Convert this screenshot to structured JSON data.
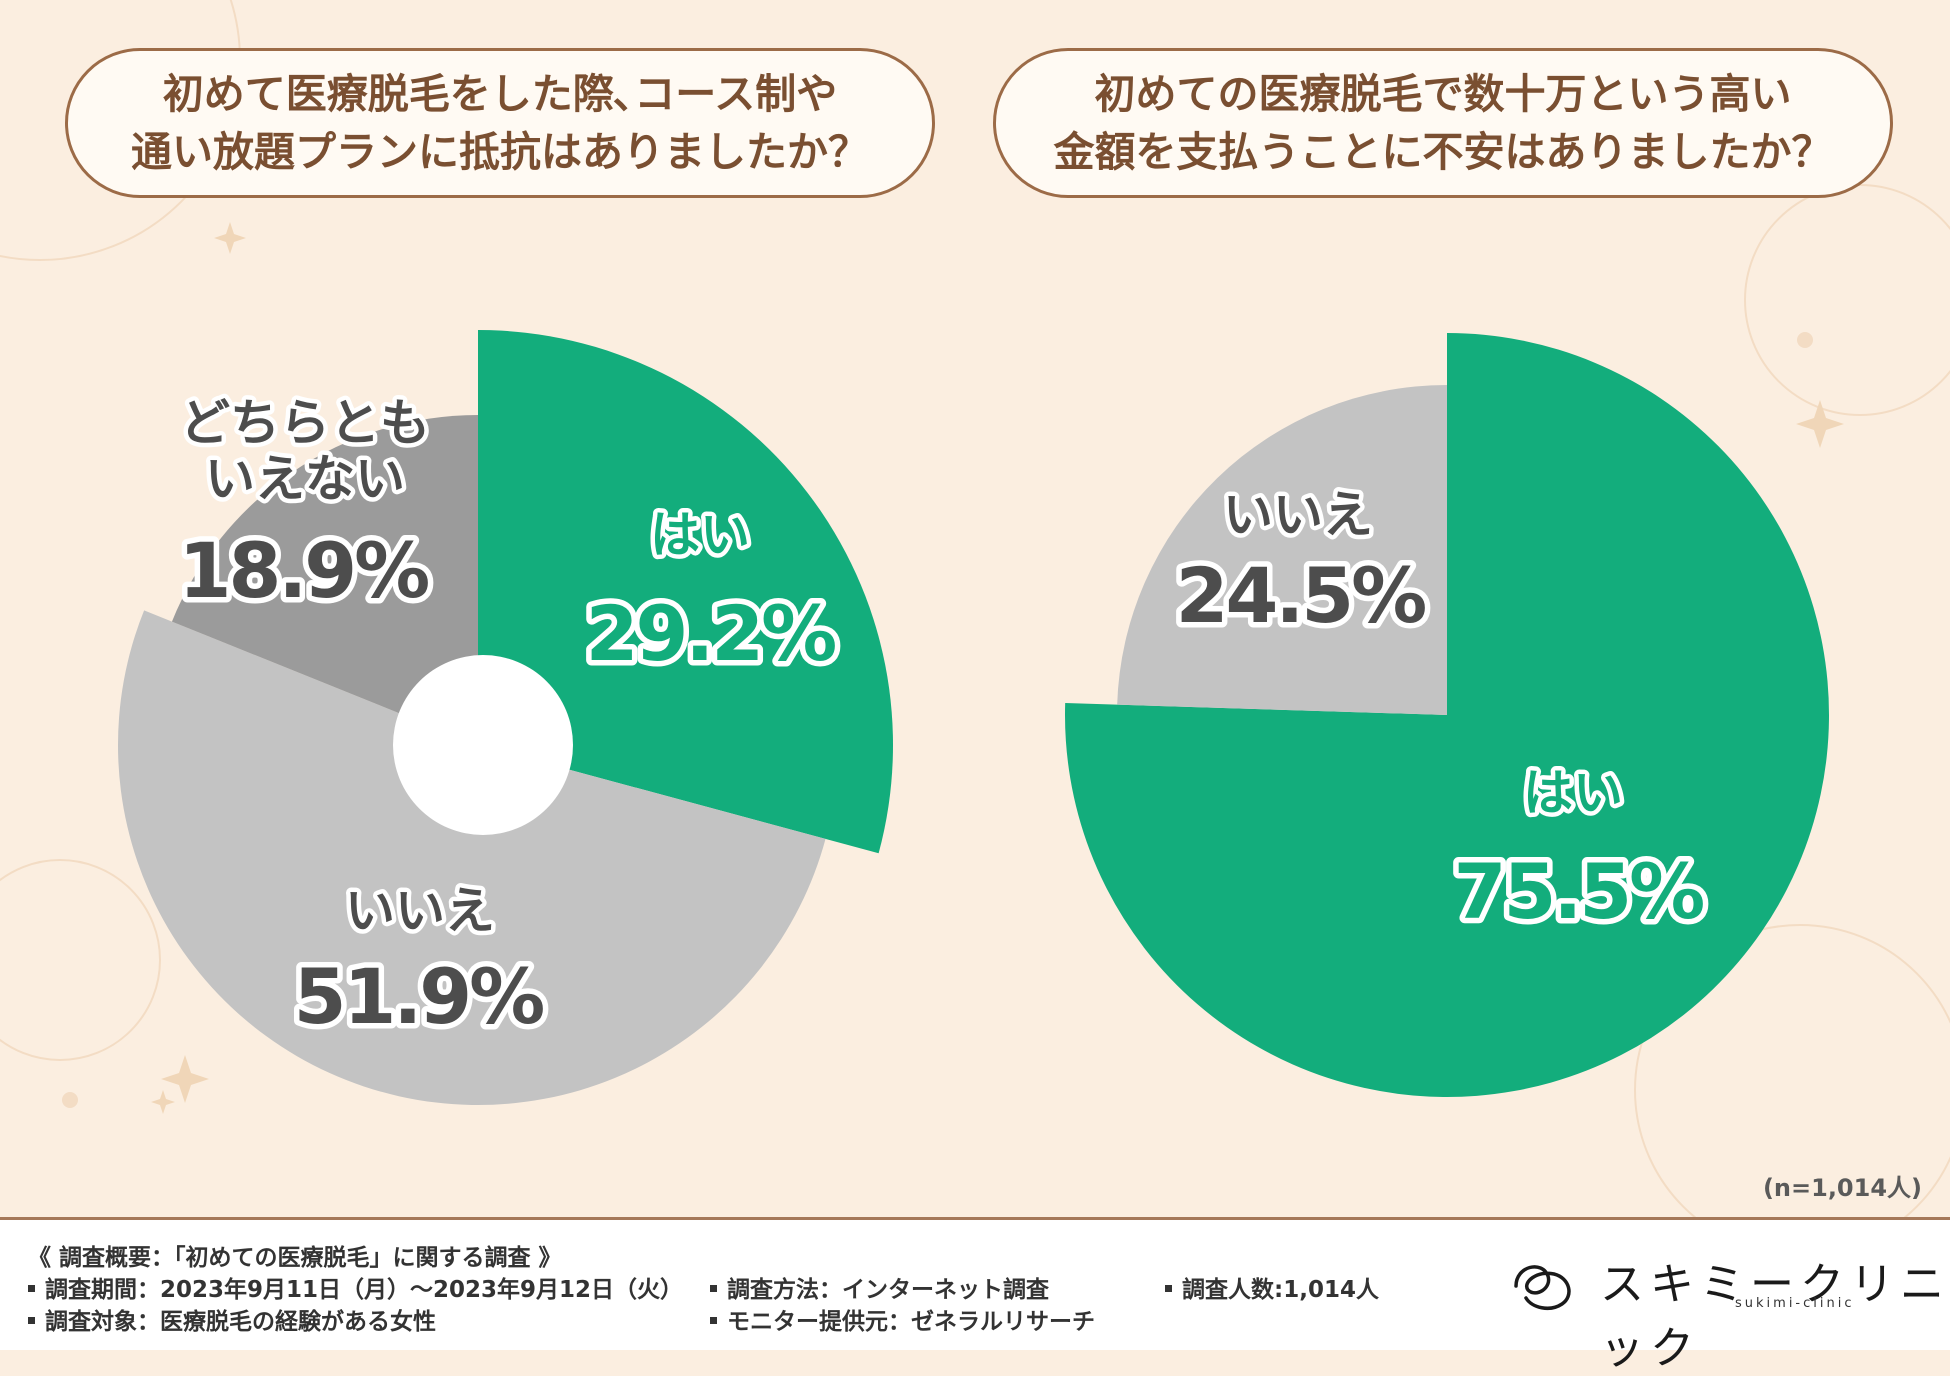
{
  "questions": {
    "left": "初めて医療脱毛をした際､コース制や\n通い放題プランに抵抗はありましたか？",
    "right": "初めての医療脱毛で数十万という高い\n金額を支払うことに不安はありましたか？"
  },
  "chart_data": [
    {
      "type": "pie",
      "title": "初めて医療脱毛をした際､コース制や通い放題プランに抵抗はありましたか？",
      "donut_hole": true,
      "slices": [
        {
          "label": "はい",
          "value": 29.2,
          "value_label": "29.2%",
          "color": "#13ad7c"
        },
        {
          "label": "いいえ",
          "value": 51.9,
          "value_label": "51.9%",
          "color": "#c3c3c3"
        },
        {
          "label": "どちらとも\nいえない",
          "value": 18.9,
          "value_label": "18.9%",
          "color": "#9b9b9b"
        }
      ]
    },
    {
      "type": "pie",
      "title": "初めての医療脱毛で数十万という高い金額を支払うことに不安はありましたか？",
      "donut_hole": false,
      "slices": [
        {
          "label": "はい",
          "value": 75.5,
          "value_label": "75.5%",
          "color": "#13ad7c"
        },
        {
          "label": "いいえ",
          "value": 24.5,
          "value_label": "24.5%",
          "color": "#c3c3c3"
        }
      ]
    }
  ],
  "sample_size": "(n=1,014人)",
  "footer": {
    "heading": "《 調査概要：「初めての医療脱毛」に関する調査 》",
    "period": "調査期間：2023年9月11日（月）～2023年9月12日（火）",
    "target": "調査対象：医療脱毛の経験がある女性",
    "method": "調査方法：インターネット調査",
    "provider": "モニター提供元：ゼネラルリサーチ",
    "count": "調査人数:1,014人"
  },
  "logo": {
    "name": "スキミークリニック",
    "sub": "sukimi-clinic"
  }
}
